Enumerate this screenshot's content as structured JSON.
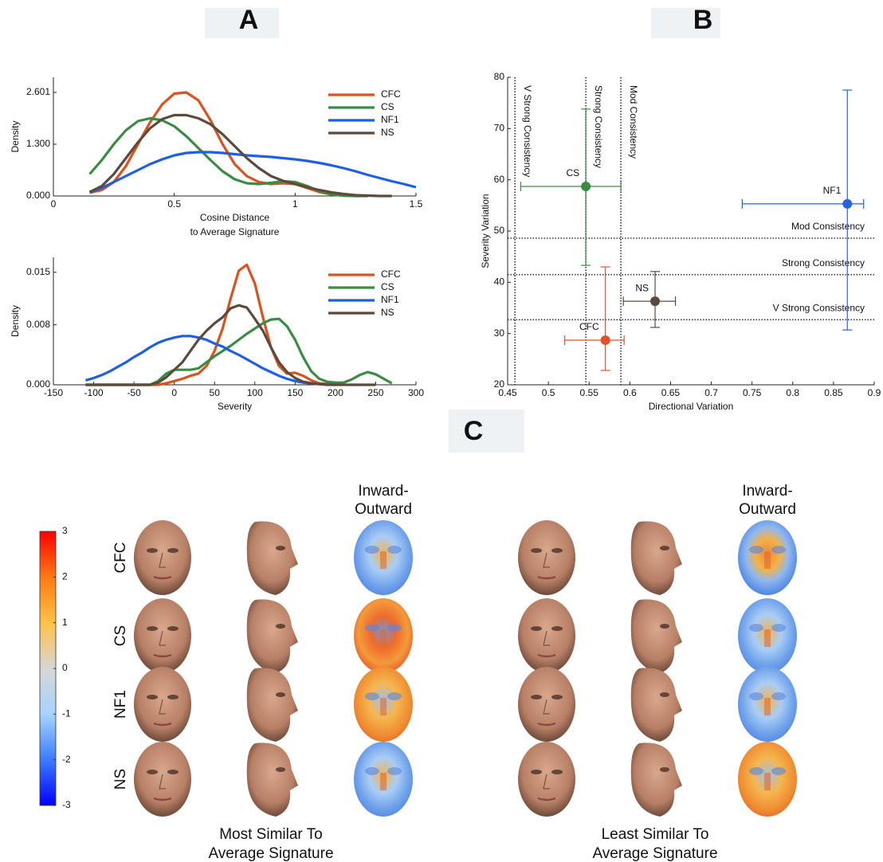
{
  "panel_labels": [
    "A",
    "B",
    "C"
  ],
  "chart_data": [
    {
      "type": "line",
      "xlabel": [
        "Cosine Distance",
        "to Average Signature"
      ],
      "ylabel": "Density",
      "x": [
        0.15,
        0.2,
        0.25,
        0.3,
        0.35,
        0.4,
        0.45,
        0.5,
        0.55,
        0.6,
        0.65,
        0.7,
        0.75,
        0.8,
        0.85,
        0.9,
        0.95,
        1,
        1.05,
        1.1,
        1.15,
        1.2,
        1.25,
        1.3,
        1.35,
        1.4,
        1.45,
        1.5
      ],
      "xlim": [
        0,
        1.5
      ],
      "xticks": [
        0,
        0.5,
        1,
        1.5
      ],
      "ylim": [
        0,
        2.98
      ],
      "yticks": [
        {
          "value": 0,
          "label": "0.000"
        },
        {
          "value": 1.3,
          "label": "1.300"
        },
        2.601
      ],
      "legend": "top-right",
      "series": [
        {
          "name": "CFC",
          "color": "#d9531e",
          "values": [
            0.08,
            0.15,
            0.35,
            0.75,
            1.3,
            1.85,
            2.3,
            2.57,
            2.6,
            2.4,
            1.9,
            1.3,
            0.8,
            0.5,
            0.35,
            0.3,
            0.32,
            0.3,
            0.2,
            0.1,
            0.04,
            0.01,
            0,
            0,
            null,
            null,
            null,
            null
          ]
        },
        {
          "name": "CS",
          "color": "#3a8c45",
          "values": [
            0.55,
            0.9,
            1.3,
            1.65,
            1.88,
            1.95,
            1.9,
            1.75,
            1.5,
            1.2,
            0.9,
            0.62,
            0.42,
            0.32,
            0.3,
            0.33,
            0.37,
            0.35,
            0.25,
            0.12,
            0.04,
            0.01,
            0,
            0,
            null,
            null,
            null,
            null
          ]
        },
        {
          "name": "NF1",
          "color": "#1f5fe6",
          "values": [
            0.1,
            0.2,
            0.35,
            0.5,
            0.65,
            0.8,
            0.92,
            1.02,
            1.08,
            1.1,
            1.1,
            1.08,
            1.05,
            1.02,
            1.0,
            0.98,
            0.95,
            0.92,
            0.88,
            0.83,
            0.77,
            0.7,
            0.62,
            0.53,
            0.45,
            0.37,
            0.3,
            0.22
          ]
        },
        {
          "name": "NS",
          "color": "#5d4a3c",
          "values": [
            0.1,
            0.25,
            0.55,
            0.95,
            1.35,
            1.7,
            1.93,
            2.03,
            2.03,
            1.95,
            1.8,
            1.55,
            1.25,
            0.95,
            0.7,
            0.5,
            0.38,
            0.3,
            0.22,
            0.15,
            0.09,
            0.05,
            0.02,
            0.01,
            0,
            0,
            null,
            null
          ]
        }
      ]
    },
    {
      "type": "line",
      "xlabel": [
        "Severity"
      ],
      "ylabel": "Density",
      "x": [
        -110,
        -100,
        -90,
        -80,
        -70,
        -60,
        -50,
        -40,
        -30,
        -20,
        -10,
        0,
        10,
        20,
        30,
        40,
        50,
        60,
        70,
        80,
        90,
        100,
        110,
        120,
        130,
        140,
        150,
        160,
        170,
        180,
        190,
        200,
        210,
        220,
        230,
        240,
        250,
        260,
        270
      ],
      "xlim": [
        -150,
        300
      ],
      "xticks": [
        -150,
        -100,
        -50,
        0,
        50,
        100,
        150,
        200,
        250,
        300
      ],
      "ylim": [
        0,
        0.017
      ],
      "yticks": [
        {
          "value": 0,
          "label": "0.000"
        },
        0.008,
        0.015
      ],
      "legend": "top-right",
      "series": [
        {
          "name": "CFC",
          "color": "#d9531e",
          "values": [
            0,
            0,
            0,
            0,
            0,
            0,
            0,
            0,
            0,
            0,
            0.0002,
            0.0005,
            0.0008,
            0.0012,
            0.0015,
            0.0025,
            0.0045,
            0.0075,
            0.0115,
            0.0152,
            0.016,
            0.0135,
            0.009,
            0.005,
            0.0025,
            0.0015,
            0.0016,
            0.0012,
            0.0006,
            0.0002,
            0.0001,
            0,
            null,
            null,
            null,
            null,
            null,
            null,
            null
          ]
        },
        {
          "name": "CS",
          "color": "#3a8c45",
          "values": [
            0,
            0,
            0,
            0,
            0,
            0,
            0,
            0,
            0,
            0.0005,
            0.0015,
            0.002,
            0.002,
            0.002,
            0.0022,
            0.003,
            0.0038,
            0.0045,
            0.0052,
            0.006,
            0.0068,
            0.0075,
            0.0082,
            0.0087,
            0.0088,
            0.0078,
            0.006,
            0.0037,
            0.0018,
            0.0008,
            0.0004,
            0.0003,
            0.0003,
            0.0007,
            0.0013,
            0.0017,
            0.0014,
            0.0008,
            0.0002
          ]
        },
        {
          "name": "NF1",
          "color": "#1f5fe6",
          "values": [
            0.0006,
            0.0009,
            0.0013,
            0.0018,
            0.0024,
            0.003,
            0.0037,
            0.0043,
            0.005,
            0.0056,
            0.006,
            0.0063,
            0.0065,
            0.0065,
            0.0063,
            0.006,
            0.0055,
            0.0051,
            0.0045,
            0.004,
            0.0034,
            0.0028,
            0.0022,
            0.0017,
            0.0012,
            0.0008,
            0.0005,
            0.0003,
            0.0002,
            0.0001,
            5e-05,
            0,
            null,
            null,
            null,
            null,
            null,
            null,
            null
          ]
        },
        {
          "name": "NS",
          "color": "#5d4a3c",
          "values": [
            0,
            0,
            0,
            0,
            0,
            0,
            0,
            0,
            0,
            0.0003,
            0.001,
            0.002,
            0.003,
            0.0045,
            0.006,
            0.0072,
            0.0082,
            0.009,
            0.0102,
            0.0106,
            0.0103,
            0.0088,
            0.0072,
            0.005,
            0.003,
            0.0017,
            0.0009,
            0.0004,
            0.0002,
            0.0001,
            0,
            0,
            0,
            0,
            0,
            0,
            0,
            null,
            null
          ]
        }
      ]
    },
    {
      "type": "errorbar-scatter",
      "xlabel": "Directional Variation",
      "ylabel": "Severity Variation",
      "xlim": [
        0.45,
        0.9
      ],
      "xticks": [
        0.45,
        0.5,
        0.55,
        0.6,
        0.65,
        0.7,
        0.75,
        0.8,
        0.85,
        0.9
      ],
      "ylim": [
        20,
        80
      ],
      "yticks": [
        20,
        30,
        40,
        50,
        60,
        70,
        80
      ],
      "vlines": [
        {
          "value": 0.459,
          "label": "V Strong Consistency"
        },
        {
          "value": 0.546,
          "label": "Strong Consistency"
        },
        {
          "value": 0.589,
          "label": "Mod Consistency"
        }
      ],
      "hlines": [
        {
          "value": 32.7,
          "label": "V Strong Consistency"
        },
        {
          "value": 41.5,
          "label": "Strong Consistency"
        },
        {
          "value": 48.6,
          "label": "Mod Consistency"
        }
      ],
      "series": [
        {
          "name": "CS",
          "color": "#3a8c45",
          "x": [
            0.546
          ],
          "values": [
            58.7
          ],
          "x_low": [
            0.466
          ],
          "x_high": [
            0.589
          ],
          "y_low": [
            43.3
          ],
          "y_high": [
            73.8
          ]
        },
        {
          "name": "NF1",
          "color": "#2462e0",
          "x": [
            0.867
          ],
          "values": [
            55.3
          ],
          "x_low": [
            0.738
          ],
          "x_high": [
            0.887
          ],
          "y_low": [
            30.7
          ],
          "y_high": [
            77.5
          ]
        },
        {
          "name": "NS",
          "color": "#5d4a3c",
          "x": [
            0.631
          ],
          "values": [
            36.3
          ],
          "x_low": [
            0.592
          ],
          "x_high": [
            0.656
          ],
          "y_low": [
            31.2
          ],
          "y_high": [
            42.1
          ]
        },
        {
          "name": "CFC",
          "color": "#e0522a",
          "x": [
            0.57
          ],
          "values": [
            28.7
          ],
          "x_low": [
            0.52
          ],
          "x_high": [
            0.593
          ],
          "y_low": [
            22.8
          ],
          "y_high": [
            43.0
          ]
        }
      ]
    },
    {
      "type": "colorbar",
      "ylim": [
        -3,
        3
      ],
      "yticks": [
        3,
        2,
        1,
        0,
        -1,
        -2,
        -3
      ],
      "colors": [
        "#0000ff",
        "#3d7bff",
        "#a6d4ff",
        "#d6d6d6",
        "#ffc247",
        "#ff7a14",
        "#ff0000"
      ]
    }
  ],
  "faces": {
    "row_labels": [
      "CFC",
      "CS",
      "NF1",
      "NS"
    ],
    "groups": [
      {
        "title": [
          "Most Similar To",
          "Average Signature"
        ],
        "heatmap_header": [
          "Inward-",
          "Outward"
        ]
      },
      {
        "title": [
          "Least Similar To",
          "Average Signature"
        ],
        "heatmap_header": [
          "Inward-",
          "Outward"
        ]
      }
    ]
  }
}
